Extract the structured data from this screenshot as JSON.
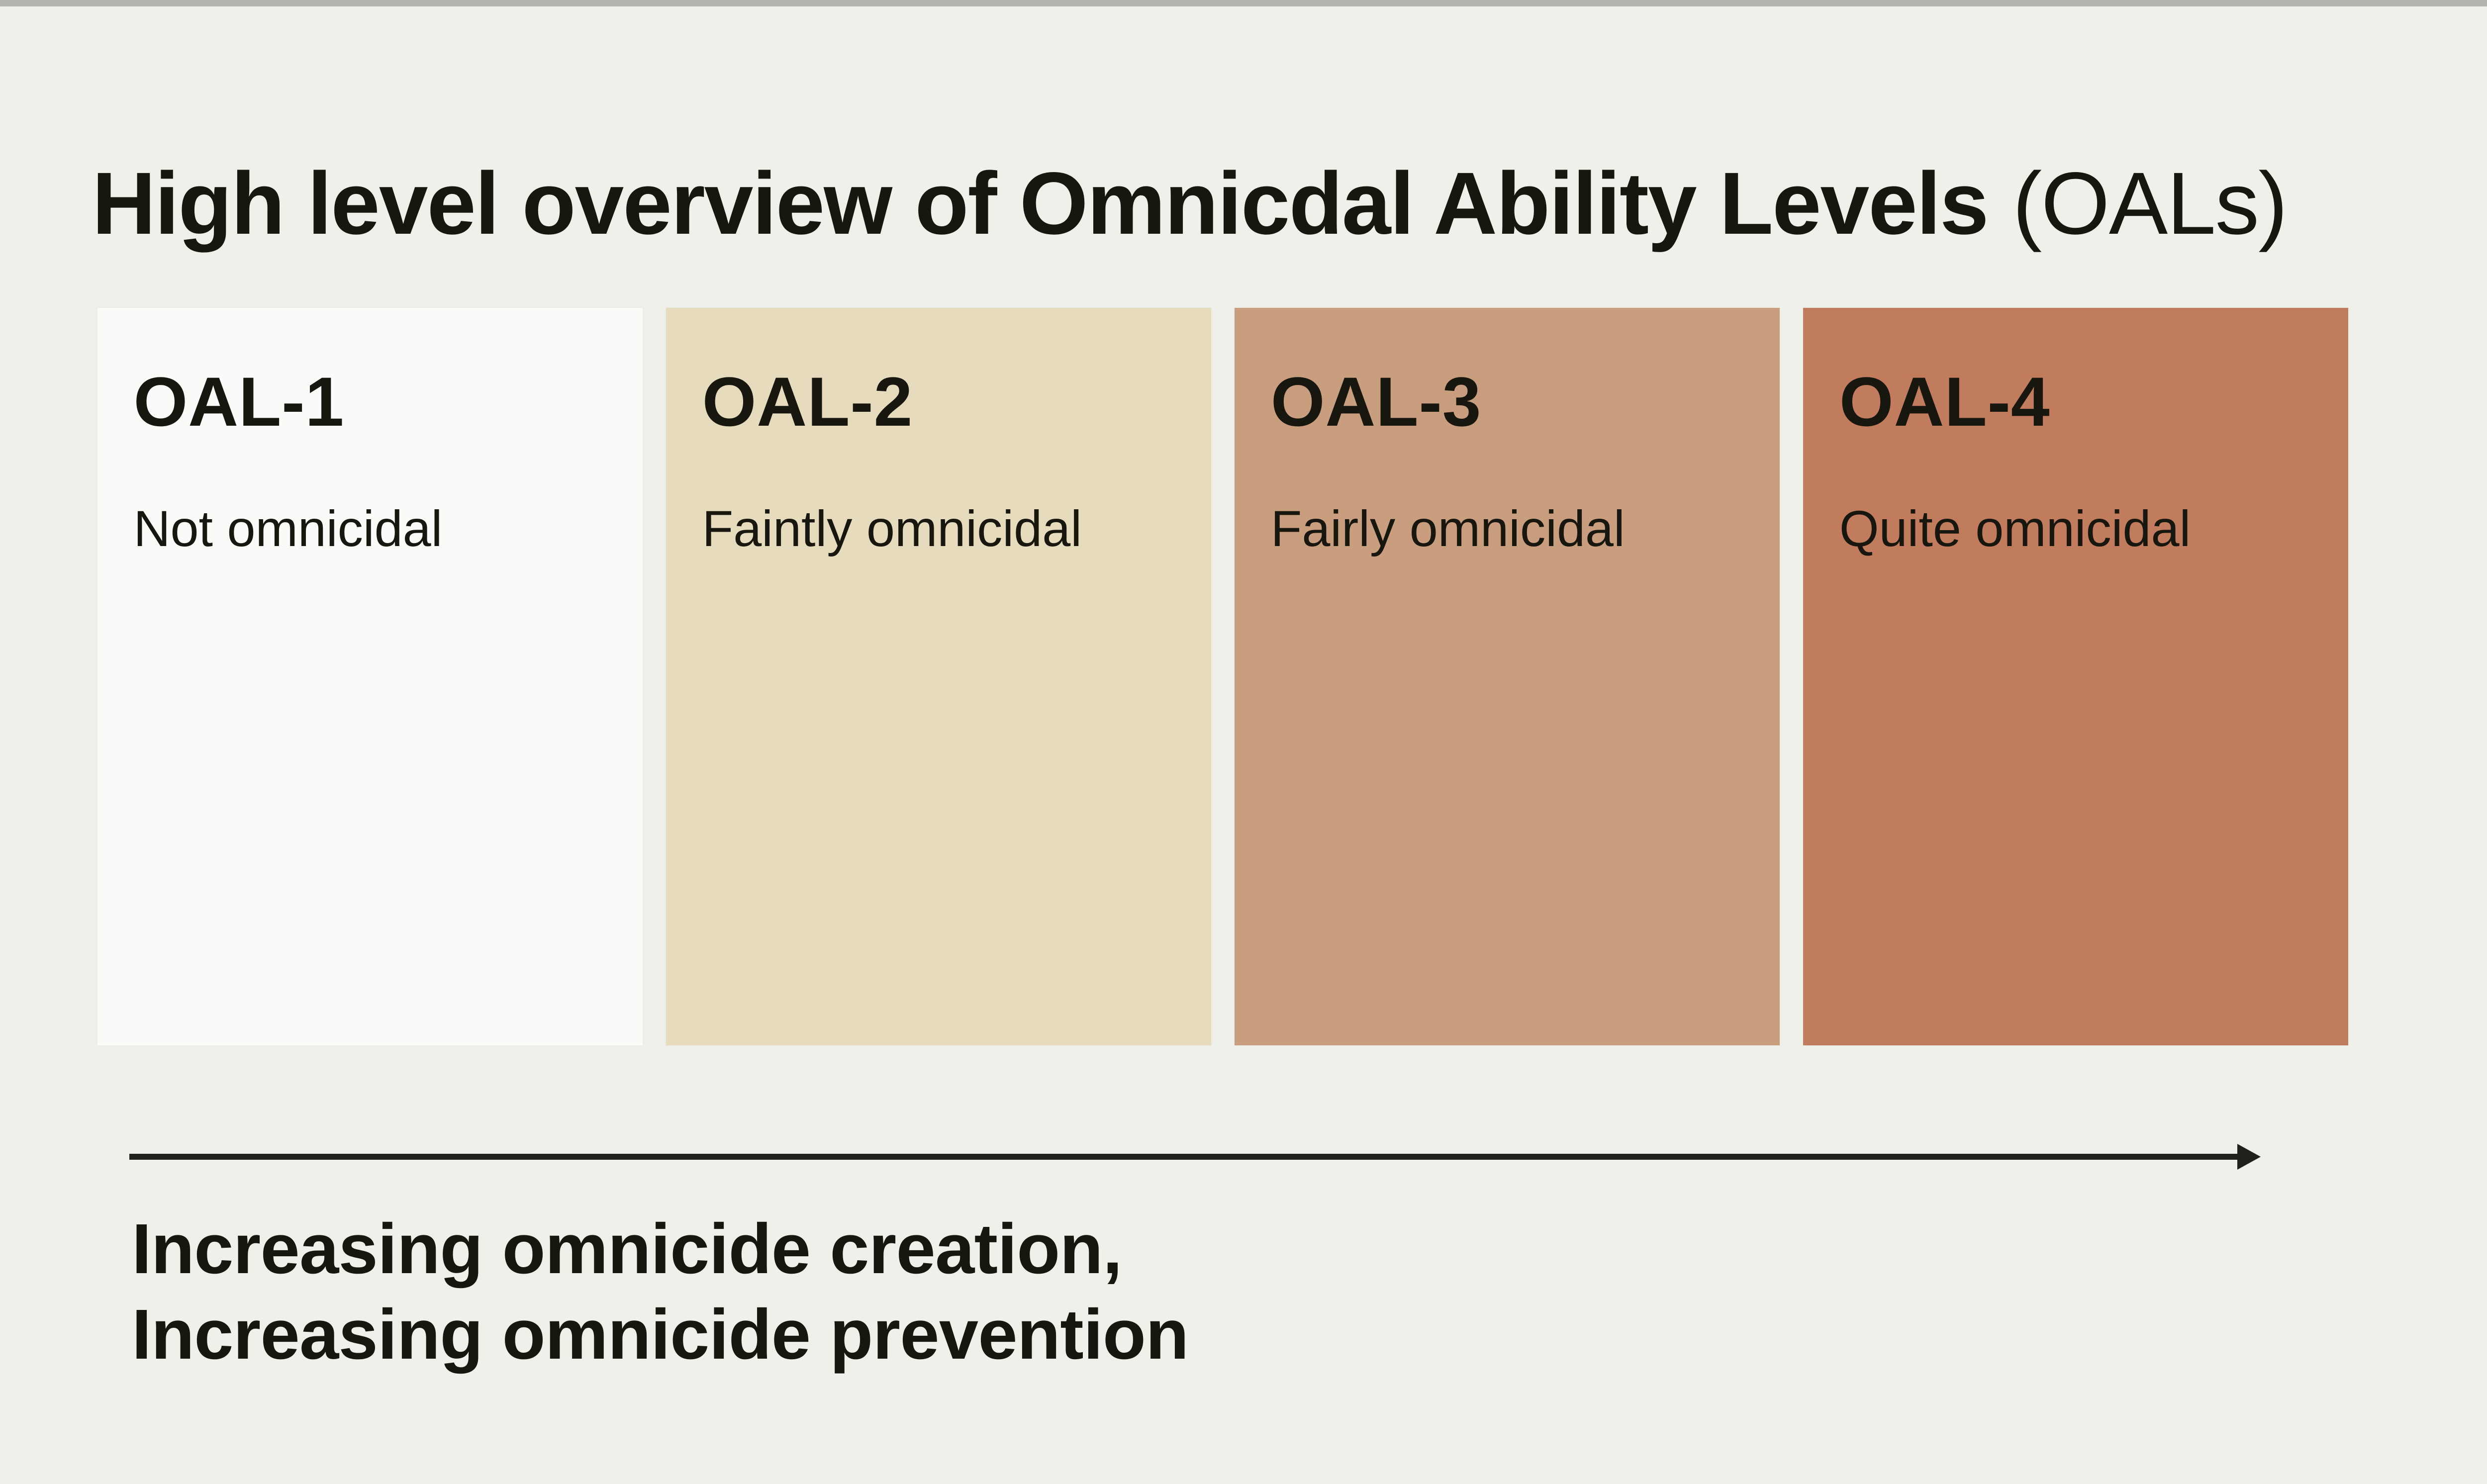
{
  "page": {
    "background_color": "#eff0ea",
    "top_strip_color": "#b2b4ae",
    "text_color": "#17160f"
  },
  "title": {
    "main": "High level overview of Omnicdal Ability Levels",
    "paren": "(OALs)"
  },
  "levels": [
    {
      "id": "OAL-1",
      "description": "Not omnicidal",
      "color": "#fafaf8"
    },
    {
      "id": "OAL-2",
      "description": "Faintly omnicidal",
      "color": "#e6dcbd"
    },
    {
      "id": "OAL-3",
      "description": "Fairly omnicidal",
      "color": "#c99e7e"
    },
    {
      "id": "OAL-4",
      "description": "Quite omnicidal",
      "color": "#c17b5d"
    }
  ],
  "axis": {
    "arrow_color": "#21201c",
    "caption_line1": "Increasing omnicide creation,",
    "caption_line2": "Increasing omnicide prevention"
  }
}
